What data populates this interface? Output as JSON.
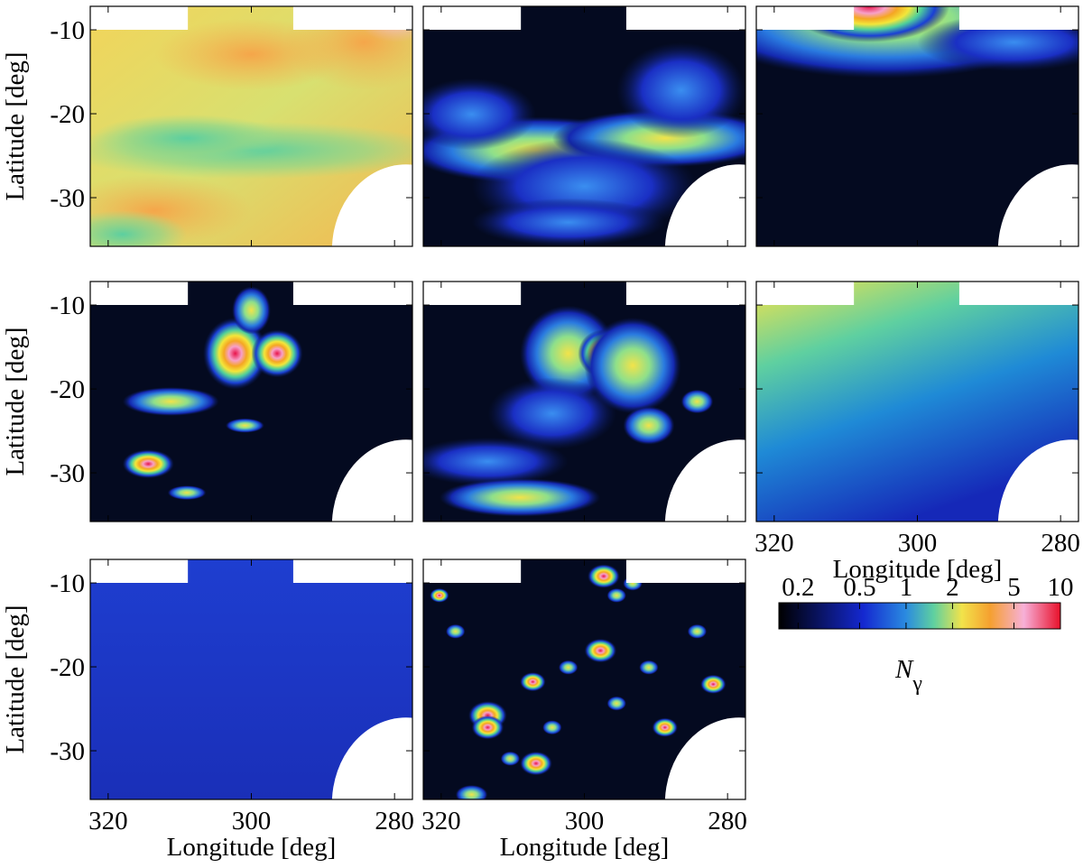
{
  "chart_data": [
    {
      "type": "map",
      "xlim": [
        322.5,
        277.5
      ],
      "ylim": [
        -35.8,
        -7.2
      ],
      "xticks": [
        320,
        300,
        280
      ],
      "yticks": [
        -10,
        -20,
        -30
      ],
      "xticklabels": false,
      "yticklabels": true,
      "ylabel": "Latitude [deg]"
    },
    {
      "type": "map",
      "xlim": [
        322.5,
        277.5
      ],
      "ylim": [
        -35.8,
        -7.2
      ],
      "xticks": [
        320,
        300,
        280
      ],
      "yticks": [
        -10,
        -20,
        -30
      ],
      "xticklabels": false,
      "yticklabels": false
    },
    {
      "type": "map",
      "xlim": [
        322.5,
        277.5
      ],
      "ylim": [
        -35.8,
        -7.2
      ],
      "xticks": [
        320,
        300,
        280
      ],
      "yticks": [
        -10,
        -20,
        -30
      ],
      "xticklabels": false,
      "yticklabels": false
    },
    {
      "type": "map",
      "xlim": [
        322.5,
        277.5
      ],
      "ylim": [
        -35.8,
        -7.2
      ],
      "xticks": [
        320,
        300,
        280
      ],
      "yticks": [
        -10,
        -20,
        -30
      ],
      "xticklabels": false,
      "yticklabels": true,
      "ylabel": "Latitude [deg]"
    },
    {
      "type": "map",
      "xlim": [
        322.5,
        277.5
      ],
      "ylim": [
        -35.8,
        -7.2
      ],
      "xticks": [
        320,
        300,
        280
      ],
      "yticks": [
        -10,
        -20,
        -30
      ],
      "xticklabels": false,
      "yticklabels": false
    },
    {
      "type": "map",
      "xlim": [
        322.5,
        277.5
      ],
      "ylim": [
        -35.8,
        -7.2
      ],
      "xticks": [
        320,
        300,
        280
      ],
      "yticks": [
        -10,
        -20,
        -30
      ],
      "xticklabels": true,
      "yticklabels": false,
      "xlabel": "Longitude [deg]"
    },
    {
      "type": "map",
      "xlim": [
        322.5,
        277.5
      ],
      "ylim": [
        -35.8,
        -7.2
      ],
      "xticks": [
        320,
        300,
        280
      ],
      "yticks": [
        -10,
        -20,
        -30
      ],
      "xticklabels": true,
      "yticklabels": true,
      "xlabel": "Longitude [deg]",
      "ylabel": "Latitude [deg]"
    },
    {
      "type": "map",
      "xlim": [
        322.5,
        277.5
      ],
      "ylim": [
        -35.8,
        -7.2
      ],
      "xticks": [
        320,
        300,
        280
      ],
      "yticks": [
        -10,
        -20,
        -30
      ],
      "xticklabels": true,
      "yticklabels": false,
      "xlabel": "Longitude [deg]"
    },
    {
      "type": "colorbar",
      "log": true,
      "clim": [
        0.15,
        10
      ],
      "ticks": [
        0.2,
        0.5,
        1,
        2,
        5,
        10
      ],
      "label": "N",
      "label_subscript": "γ"
    }
  ]
}
